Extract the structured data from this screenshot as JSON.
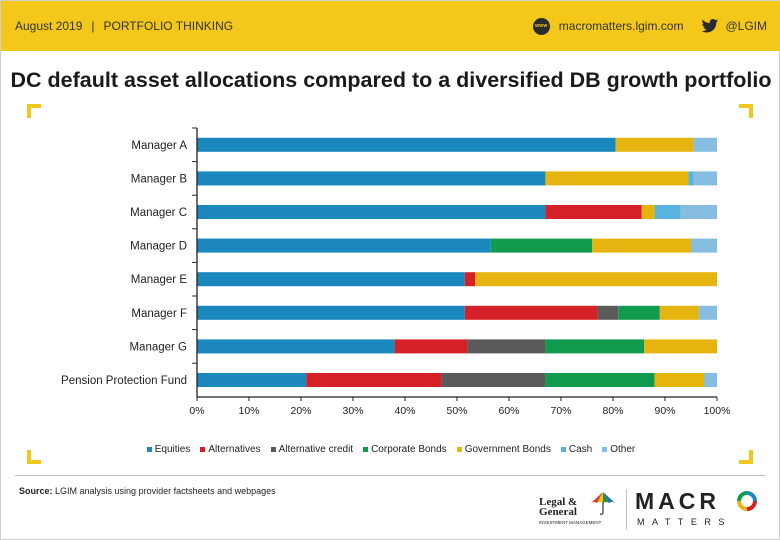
{
  "header": {
    "date": "August 2019",
    "separator": "|",
    "section": "PORTFOLIO THINKING",
    "website": "macromatters.lgim.com",
    "twitter_handle": "@LGIM",
    "web_icon": "www",
    "web_icon_name": "globe-icon",
    "twitter_icon_name": "twitter-bird-icon"
  },
  "colors": {
    "header_bg": "#f4c81a",
    "corner_bracket": "#f4c81a"
  },
  "chart_data": {
    "type": "bar",
    "orientation": "horizontal",
    "stacked": true,
    "title": "DC default asset allocations compared to a diversified DB growth portfolio",
    "categories": [
      "Manager A",
      "Manager B",
      "Manager C",
      "Manager D",
      "Manager E",
      "Manager F",
      "Manager G",
      "Pension Protection Fund"
    ],
    "x_ticks": [
      "0%",
      "10%",
      "20%",
      "30%",
      "40%",
      "50%",
      "60%",
      "70%",
      "80%",
      "90%",
      "100%"
    ],
    "xlim": [
      0,
      100
    ],
    "unit": "%",
    "grid": false,
    "legend_position": "bottom",
    "series": [
      {
        "name": "Equities",
        "color": "#1a87bd",
        "values": [
          80.5,
          67,
          67,
          56.5,
          51.5,
          51.5,
          38,
          21
        ]
      },
      {
        "name": "Alternatives",
        "color": "#d62027",
        "values": [
          0,
          0,
          18.5,
          0,
          2,
          25.5,
          14,
          26
        ]
      },
      {
        "name": "Alternative credit",
        "color": "#5a5a5a",
        "values": [
          0,
          0,
          0,
          0,
          0,
          4,
          15,
          20
        ]
      },
      {
        "name": "Corporate Bonds",
        "color": "#109a4d",
        "values": [
          0,
          0,
          0,
          19.5,
          0,
          8,
          19,
          21
        ]
      },
      {
        "name": "Government Bonds",
        "color": "#e6b40f",
        "values": [
          15,
          27.5,
          2.5,
          19,
          46.5,
          7.5,
          14,
          9.5
        ]
      },
      {
        "name": "Cash",
        "color": "#58b4dc",
        "values": [
          0,
          1,
          5,
          0,
          0,
          0,
          0,
          0
        ]
      },
      {
        "name": "Other",
        "color": "#86bde0",
        "values": [
          4.5,
          4.5,
          7,
          5,
          0,
          3.5,
          0,
          2.5
        ]
      }
    ]
  },
  "footer": {
    "source_label": "Source:",
    "source_text": "LGIM  analysis using provider factsheets and webpages",
    "lg_name_line1": "Legal &",
    "lg_name_line2": "General",
    "lg_subtitle": "INVESTMENT MANAGEMENT",
    "lg_icon_name": "umbrella-icon",
    "macro_word": "MACR",
    "matters_word": "MATTERS",
    "ring_icon_name": "multicolour-o-ring-icon"
  }
}
